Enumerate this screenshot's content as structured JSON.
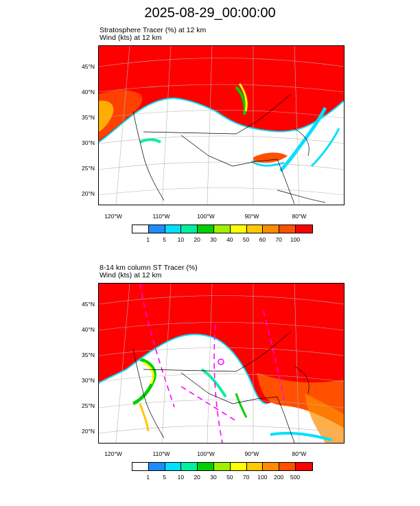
{
  "title": "2025-08-29_00:00:00",
  "panel1": {
    "line1": "Stratosphere Tracer   (%)     at   12 km",
    "line2": "Wind   (kts)     at   12 km",
    "colorbar_labels": [
      "1",
      "5",
      "10",
      "20",
      "30",
      "40",
      "50",
      "60",
      "70",
      "100"
    ]
  },
  "panel2": {
    "line1": "8-14 km column ST Tracer   (%)",
    "line2": "Wind   (kts)     at   12 km",
    "colorbar_labels": [
      "1",
      "5",
      "10",
      "20",
      "30",
      "50",
      "70",
      "100",
      "200",
      "500"
    ]
  },
  "lat_labels": [
    "45°N",
    "40°N",
    "35°N",
    "30°N",
    "25°N",
    "20°N"
  ],
  "lon_labels": [
    "120°W",
    "110°W",
    "100°W",
    "90°W",
    "80°W"
  ],
  "colors": [
    "#ffffff",
    "#1e8cff",
    "#00e0ff",
    "#00f0a0",
    "#00d000",
    "#a0f000",
    "#ffff00",
    "#ffc800",
    "#ff8c00",
    "#ff5000",
    "#ff0000"
  ]
}
